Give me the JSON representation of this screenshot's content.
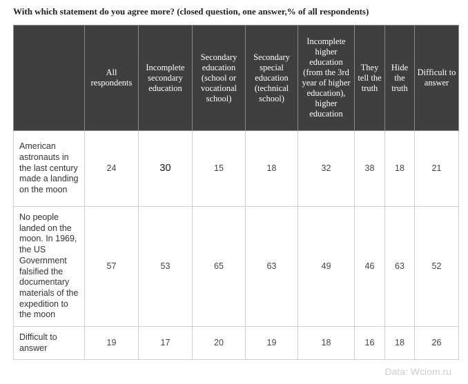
{
  "title": "With which statement do you agree more? (closed question, one answer,% of all respondents)",
  "columns": [
    "",
    "All respondents",
    "Incomplete secondary education",
    "Secondary education (school or vocational school)",
    "Secondary special education (technical school)",
    "Incomplete higher education (from the 3rd year of higher education), higher education",
    "They tell the truth",
    "Hide the truth",
    "Difficult to answer"
  ],
  "rows": [
    {
      "label": "American astronauts in the last century made a landing on the moon",
      "values": [
        "24",
        "30",
        "15",
        "18",
        "32",
        "38",
        "18",
        "21"
      ]
    },
    {
      "label": "No people landed on the moon. In 1969, the US Government falsified the documentary materials of the expedition to the moon",
      "values": [
        "57",
        "53",
        "65",
        "63",
        "49",
        "46",
        "63",
        "52"
      ]
    },
    {
      "label": "Difficult to answer",
      "values": [
        "19",
        "17",
        "20",
        "19",
        "18",
        "16",
        "18",
        "26"
      ]
    }
  ],
  "source": "Data: Wciom.ru"
}
